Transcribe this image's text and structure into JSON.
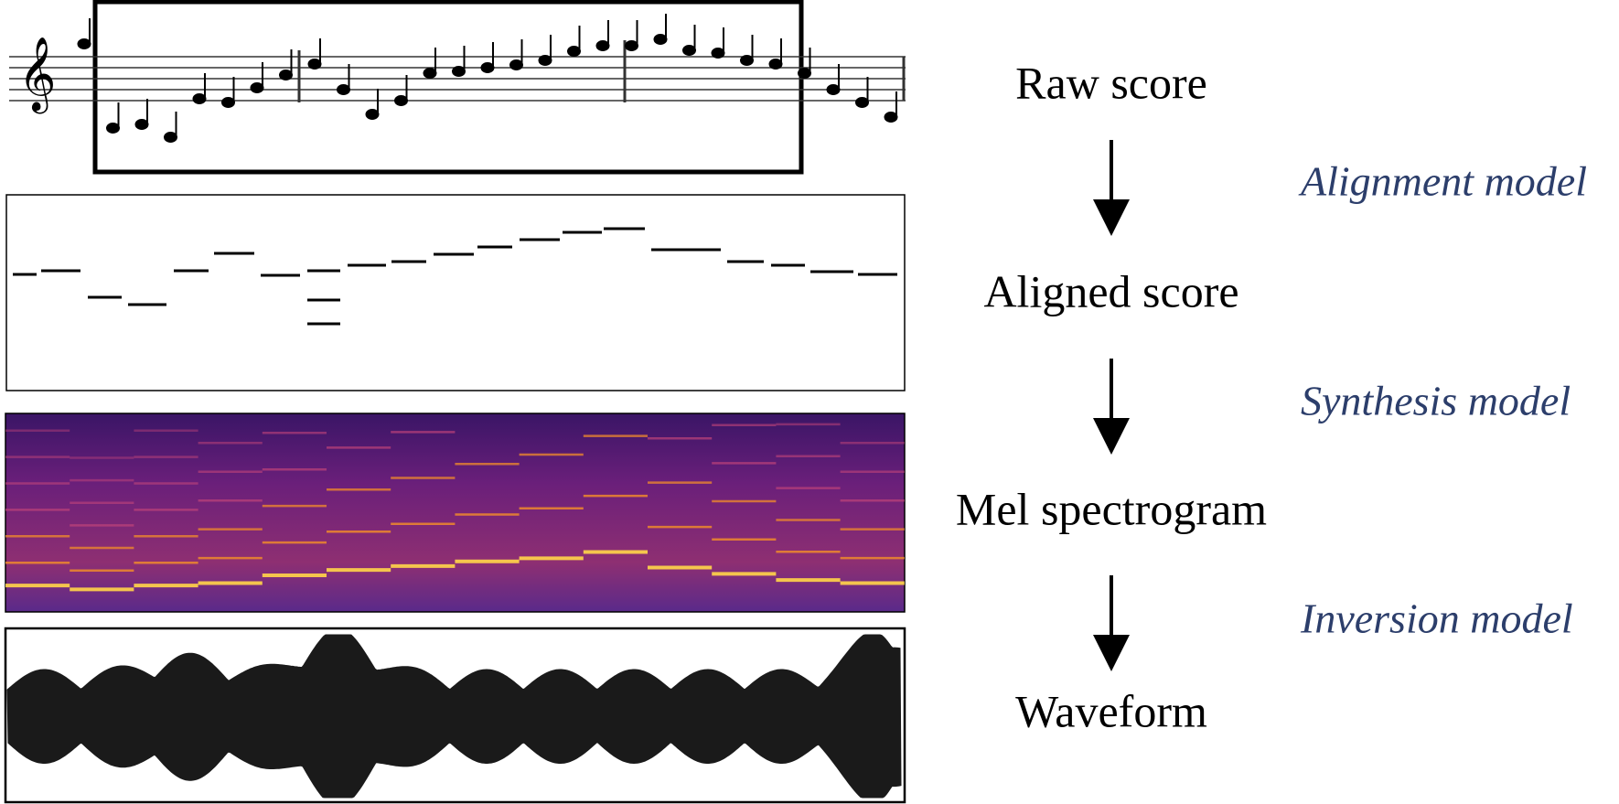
{
  "stages": [
    {
      "label": "Raw score"
    },
    {
      "label": "Aligned score"
    },
    {
      "label": "Mel spectrogram"
    },
    {
      "label": "Waveform"
    }
  ],
  "models": [
    {
      "label": "Alignment model"
    },
    {
      "label": "Synthesis model"
    },
    {
      "label": "Inversion model"
    }
  ]
}
